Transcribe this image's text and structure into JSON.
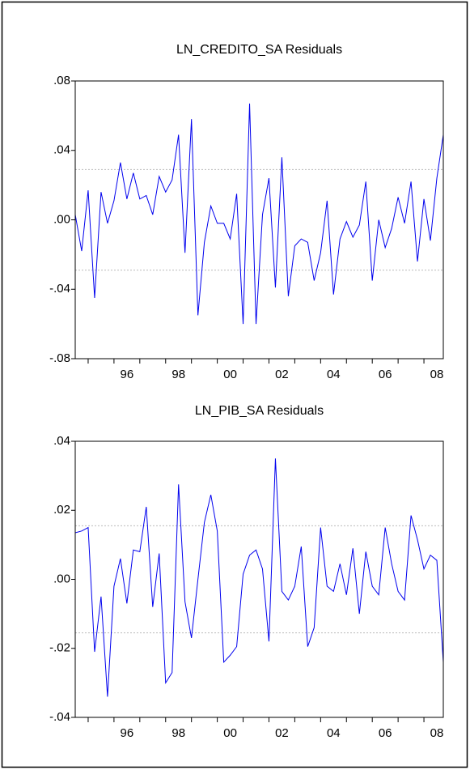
{
  "chart_data": [
    {
      "type": "line",
      "title": "LN_CREDITO_SA Residuals",
      "x": [
        1994.5,
        1994.75,
        1995,
        1995.25,
        1995.5,
        1995.75,
        1996,
        1996.25,
        1996.5,
        1996.75,
        1997,
        1997.25,
        1997.5,
        1997.75,
        1998,
        1998.25,
        1998.5,
        1998.75,
        1999,
        1999.25,
        1999.5,
        1999.75,
        2000,
        2000.25,
        2000.5,
        2000.75,
        2001,
        2001.25,
        2001.5,
        2001.75,
        2002,
        2002.25,
        2002.5,
        2002.75,
        2003,
        2003.25,
        2003.5,
        2003.75,
        2004,
        2004.25,
        2004.5,
        2004.75,
        2005,
        2005.25,
        2005.5,
        2005.75,
        2006,
        2006.25,
        2006.5,
        2006.75,
        2007,
        2007.25,
        2007.5,
        2007.75,
        2008,
        2008.25,
        2008.5,
        2008.75
      ],
      "series": [
        {
          "color": "#0000ee",
          "values": [
            0.003,
            -0.018,
            0.017,
            -0.045,
            0.016,
            -0.002,
            0.011,
            0.033,
            0.012,
            0.027,
            0.012,
            0.014,
            0.003,
            0.025,
            0.016,
            0.023,
            0.049,
            -0.019,
            0.058,
            -0.055,
            -0.013,
            0.008,
            -0.002,
            -0.002,
            -0.011,
            0.015,
            -0.06,
            0.067,
            -0.06,
            0.003,
            0.024,
            -0.039,
            0.036,
            -0.044,
            -0.015,
            -0.011,
            -0.013,
            -0.035,
            -0.019,
            0.011,
            -0.043,
            -0.011,
            -0.001,
            -0.01,
            -0.003,
            0.022,
            -0.035,
            0,
            -0.016,
            -0.005,
            0.013,
            -0.002,
            0.022,
            -0.024,
            0.012,
            -0.012,
            0.024,
            0.049
          ]
        }
      ],
      "reference_lines": [
        0.029,
        -0.029
      ],
      "xlim": [
        1994.5,
        2008.75
      ],
      "xticks": [
        {
          "value": 1996.5,
          "label": "96"
        },
        {
          "value": 1998.5,
          "label": "98"
        },
        {
          "value": 2000.5,
          "label": "00"
        },
        {
          "value": 2002.5,
          "label": "02"
        },
        {
          "value": 2004.5,
          "label": "04"
        },
        {
          "value": 2006.5,
          "label": "06"
        },
        {
          "value": 2008.5,
          "label": "08"
        }
      ],
      "x_tick_marks": [
        1995,
        1996,
        1997,
        1998,
        1999,
        2000,
        2001,
        2002,
        2003,
        2004,
        2005,
        2006,
        2007,
        2008
      ],
      "ylim": [
        -0.08,
        0.08
      ],
      "yticks": [
        {
          "value": -0.08,
          "label": "-.08"
        },
        {
          "value": -0.04,
          "label": "-.04"
        },
        {
          "value": 0,
          "label": ".00"
        },
        {
          "value": 0.04,
          "label": ".04"
        },
        {
          "value": 0.08,
          "label": ".08"
        }
      ]
    },
    {
      "type": "line",
      "title": "LN_PIB_SA Residuals",
      "x": [
        1994.5,
        1994.75,
        1995,
        1995.25,
        1995.5,
        1995.75,
        1996,
        1996.25,
        1996.5,
        1996.75,
        1997,
        1997.25,
        1997.5,
        1997.75,
        1998,
        1998.25,
        1998.5,
        1998.75,
        1999,
        1999.25,
        1999.5,
        1999.75,
        2000,
        2000.25,
        2000.5,
        2000.75,
        2001,
        2001.25,
        2001.5,
        2001.75,
        2002,
        2002.25,
        2002.5,
        2002.75,
        2003,
        2003.25,
        2003.5,
        2003.75,
        2004,
        2004.25,
        2004.5,
        2004.75,
        2005,
        2005.25,
        2005.5,
        2005.75,
        2006,
        2006.25,
        2006.5,
        2006.75,
        2007,
        2007.25,
        2007.5,
        2007.75,
        2008,
        2008.25,
        2008.5,
        2008.75
      ],
      "series": [
        {
          "color": "#0000ee",
          "values": [
            0.0135,
            0.014,
            0.015,
            -0.021,
            -0.005,
            -0.034,
            -0.002,
            0.006,
            -0.007,
            0.0085,
            0.008,
            0.021,
            -0.008,
            0.0075,
            -0.03,
            -0.027,
            0.0275,
            -0.0065,
            -0.017,
            0,
            0.0165,
            0.0245,
            0.014,
            -0.024,
            -0.022,
            -0.0195,
            0.0015,
            0.007,
            0.0085,
            0.003,
            -0.018,
            0.035,
            -0.0035,
            -0.006,
            -0.002,
            0.0095,
            -0.0195,
            -0.014,
            0.015,
            -0.002,
            -0.0035,
            0.0045,
            -0.0045,
            0.009,
            -0.01,
            0.008,
            -0.002,
            -0.0045,
            0.015,
            0.0045,
            -0.0035,
            -0.006,
            0.0185,
            0.0115,
            0.003,
            0.007,
            0.0055,
            -0.024
          ]
        }
      ],
      "reference_lines": [
        0.0155,
        -0.0155
      ],
      "xlim": [
        1994.5,
        2008.75
      ],
      "xticks": [
        {
          "value": 1996.5,
          "label": "96"
        },
        {
          "value": 1998.5,
          "label": "98"
        },
        {
          "value": 2000.5,
          "label": "00"
        },
        {
          "value": 2002.5,
          "label": "02"
        },
        {
          "value": 2004.5,
          "label": "04"
        },
        {
          "value": 2006.5,
          "label": "06"
        },
        {
          "value": 2008.5,
          "label": "08"
        }
      ],
      "x_tick_marks": [
        1995,
        1996,
        1997,
        1998,
        1999,
        2000,
        2001,
        2002,
        2003,
        2004,
        2005,
        2006,
        2007,
        2008
      ],
      "ylim": [
        -0.04,
        0.04
      ],
      "yticks": [
        {
          "value": -0.04,
          "label": "-.04"
        },
        {
          "value": -0.02,
          "label": "-.02"
        },
        {
          "value": 0,
          "label": ".00"
        },
        {
          "value": 0.02,
          "label": ".02"
        },
        {
          "value": 0.04,
          "label": ".04"
        }
      ]
    }
  ]
}
